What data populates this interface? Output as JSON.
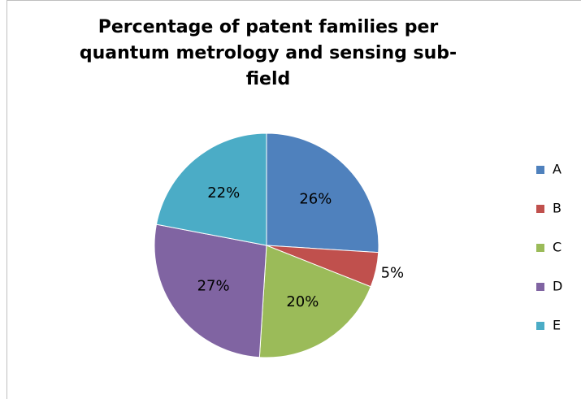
{
  "chart_data": {
    "type": "pie",
    "title": "Percentage of patent families per quantum metrology and sensing sub-field",
    "categories": [
      "A",
      "B",
      "C",
      "D",
      "E"
    ],
    "values": [
      26,
      5,
      20,
      27,
      22
    ],
    "value_labels": [
      "26%",
      "5%",
      "20%",
      "27%",
      "22%"
    ],
    "colors": [
      "#4f81bd",
      "#c0504d",
      "#9bbb59",
      "#8064a2",
      "#4bacc6"
    ],
    "legend": "right"
  }
}
